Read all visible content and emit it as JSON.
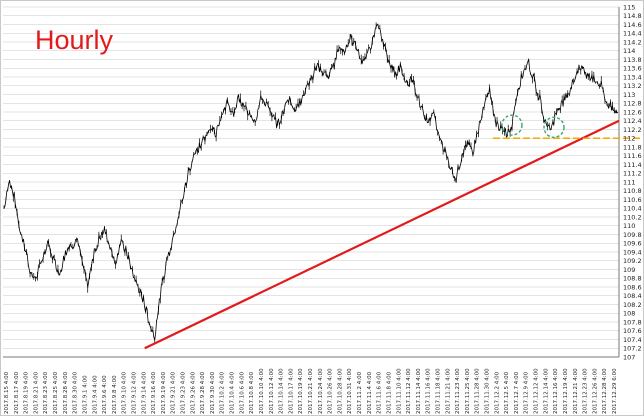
{
  "chart_data": {
    "type": "line",
    "title": "Hourly",
    "xlabel": "",
    "ylabel": "",
    "ylim": [
      107,
      115
    ],
    "y_ticks": [
      107,
      107.2,
      107.4,
      107.6,
      107.8,
      108,
      108.2,
      108.4,
      108.6,
      108.8,
      109,
      109.2,
      109.4,
      109.6,
      109.8,
      110,
      110.2,
      110.4,
      110.6,
      110.8,
      111,
      111.2,
      111.4,
      111.6,
      111.8,
      112,
      112.2,
      112.4,
      112.6,
      112.8,
      113,
      113.2,
      113.4,
      113.6,
      113.8,
      114,
      114.2,
      114.4,
      114.6,
      114.8,
      115
    ],
    "x_tick_labels": [
      "2017.8.15 4:00",
      "2017.8.17 4:00",
      "2017.8.19 4:00",
      "2017.8.21 4:00",
      "2017.8.23 4:00",
      "2017.8.25 4:00",
      "2017.8.28 4:00",
      "2017.8.30 4:00",
      "2017.9.1 4:00",
      "2017.9.4 4:00",
      "2017.9.6 4:00",
      "2017.9.8 4:00",
      "2017.9.10 4:00",
      "2017.9.12 4:00",
      "2017.9.14 4:00",
      "2017.9.16 4:00",
      "2017.9.19 4:00",
      "2017.9.21 4:00",
      "2017.9.23 4:00",
      "2017.9.26 4:00",
      "2017.9.28 4:00",
      "2017.9.30 4:00",
      "2017.10.2 4:00",
      "2017.10.4 4:00",
      "2017.10.6 4:00",
      "2017.10.8 4:00",
      "2017.10.10 4:00",
      "2017.10.12 4:00",
      "2017.10.14 4:00",
      "2017.10.17 4:00",
      "2017.10.19 4:00",
      "2017.10.21 4:00",
      "2017.10.24 4:00",
      "2017.10.26 4:00",
      "2017.10.28 4:00",
      "2017.10.31 4:00",
      "2017.11.2 4:00",
      "2017.11.4 4:00",
      "2017.11.6 4:00",
      "2017.11.8 4:00",
      "2017.11.10 4:00",
      "2017.11.12 4:00",
      "2017.11.14 4:00",
      "2017.11.16 4:00",
      "2017.11.18 4:00",
      "2017.11.21 4:00",
      "2017.11.23 4:00",
      "2017.11.25 4:00",
      "2017.11.28 4:00",
      "2017.11.30 4:00",
      "2017.12.2 4:00",
      "2017.12.5 4:00",
      "2017.12.7 4:00",
      "2017.12.9 4:00",
      "2017.12.12 4:00",
      "2017.12.14 4:00",
      "2017.12.16 4:00",
      "2017.12.19 4:00",
      "2017.12.21 4:00",
      "2017.12.23 4:00",
      "2017.12.26 4:00",
      "2017.12.28 4:00",
      "2017.12.29 6:00"
    ],
    "series": [
      {
        "values": [
          110.4,
          111.0,
          110.6,
          109.8,
          109.4,
          108.8,
          108.9,
          109.3,
          109.6,
          109.2,
          108.9,
          109.4,
          109.5,
          109.7,
          109.2,
          108.6,
          109.3,
          109.7,
          109.9,
          109.5,
          109.2,
          109.6,
          109.4,
          108.9,
          108.6,
          108.3,
          107.8,
          107.5,
          108.4,
          109.1,
          109.6,
          110.1,
          110.6,
          111.2,
          111.6,
          111.8,
          112.0,
          112.3,
          112.1,
          112.6,
          112.8,
          112.5,
          112.9,
          112.7,
          112.6,
          112.4,
          112.9,
          112.8,
          112.5,
          112.3,
          112.6,
          112.9,
          112.7,
          112.8,
          113.1,
          113.3,
          113.7,
          113.5,
          113.4,
          113.6,
          114.1,
          114.0,
          114.3,
          114.1,
          113.8,
          113.9,
          114.2,
          114.6,
          114.1,
          113.8,
          113.5,
          113.6,
          113.2,
          113.4,
          113.0,
          112.6,
          112.4,
          112.5,
          112.0,
          111.7,
          111.3,
          111.1,
          111.6,
          111.9,
          111.7,
          112.2,
          112.7,
          113.1,
          112.4,
          112.2,
          112.1,
          112.3,
          113.1,
          113.5,
          113.7,
          113.3,
          112.9,
          112.4,
          112.2,
          112.6,
          112.8,
          113.0,
          113.3,
          113.6,
          113.5,
          113.4,
          113.3,
          113.2,
          112.8,
          112.7,
          112.6
        ]
      }
    ],
    "trendline": {
      "from": [
        27,
        107.2
      ],
      "to": [
        110,
        112.4
      ]
    },
    "horizontal_level": 112.0,
    "grid": true,
    "colors": {
      "price_line": "#000000",
      "trendline": "#e31a1c",
      "level_line": "#f2a900",
      "circles": "#3aa870",
      "title": "#e31a1c",
      "grid": "#c8c8c8"
    }
  }
}
